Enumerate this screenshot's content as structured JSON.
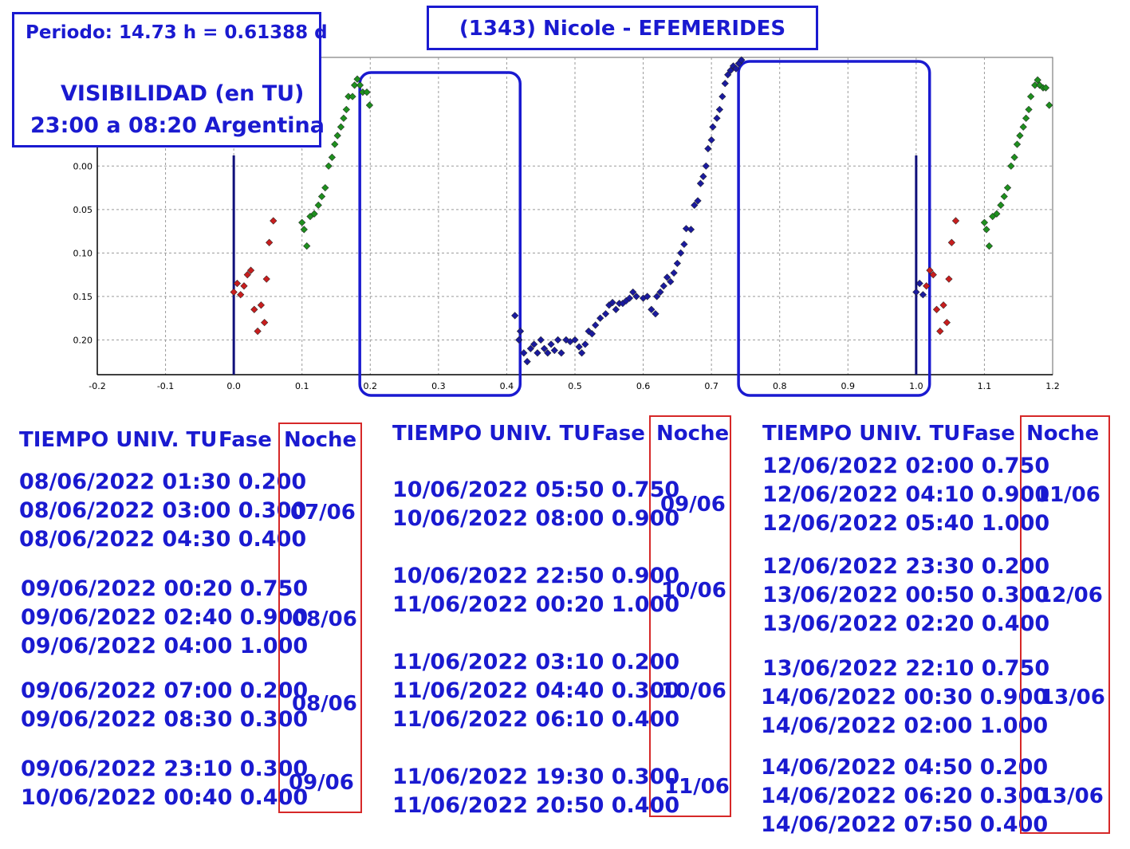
{
  "title": "(1343) Nicole - EFEMERIDES",
  "info": {
    "period": "Periodo: 14.73 h = 0.61388 d",
    "visibility_title": "VISIBILIDAD (en TU)",
    "visibility_range": "23:00 a 08:20 Argentina"
  },
  "colors": {
    "text": "#1a1ad0",
    "frame": "#1a1ad0",
    "night_box": "#d62828",
    "series_blue": "#1a1a9e",
    "series_green": "#1e8f1e",
    "series_red": "#c81e1e"
  },
  "chart_data": {
    "type": "scatter",
    "x_ticks": [
      "-0.2",
      "-0.1",
      "0.0",
      "0.1",
      "0.2",
      "0.3",
      "0.4",
      "0.5",
      "0.6",
      "0.7",
      "0.8",
      "0.9",
      "1.0",
      "1.1",
      "1.2"
    ],
    "y_ticks": [
      "0.00",
      "0.05",
      "0.10",
      "0.15",
      "0.20"
    ],
    "xlim": [
      -0.2,
      1.2
    ],
    "ylim": [
      0.24,
      -0.125
    ],
    "y_inverted": true,
    "grid": true,
    "vertical_lines": [
      0.0,
      1.0
    ],
    "visibility_windows": [
      [
        0.18,
        0.415
      ],
      [
        0.735,
        1.015
      ]
    ],
    "series": [
      {
        "color": "red",
        "points": [
          [
            0.0,
            0.145
          ],
          [
            0.005,
            0.135
          ],
          [
            0.01,
            0.148
          ],
          [
            0.015,
            0.138
          ],
          [
            0.02,
            0.125
          ],
          [
            0.025,
            0.12
          ],
          [
            0.03,
            0.165
          ],
          [
            0.035,
            0.19
          ],
          [
            0.04,
            0.16
          ],
          [
            0.045,
            0.18
          ],
          [
            0.048,
            0.13
          ],
          [
            0.052,
            0.088
          ],
          [
            0.058,
            0.063
          ]
        ]
      },
      {
        "color": "green",
        "points": [
          [
            0.1,
            0.065
          ],
          [
            0.103,
            0.073
          ],
          [
            0.107,
            0.092
          ],
          [
            0.112,
            0.058
          ],
          [
            0.118,
            0.055
          ],
          [
            0.124,
            0.045
          ],
          [
            0.129,
            0.035
          ],
          [
            0.134,
            0.025
          ],
          [
            0.139,
            0.0
          ],
          [
            0.144,
            -0.01
          ],
          [
            0.148,
            -0.025
          ],
          [
            0.152,
            -0.035
          ],
          [
            0.157,
            -0.045
          ],
          [
            0.161,
            -0.055
          ],
          [
            0.165,
            -0.065
          ],
          [
            0.168,
            -0.08
          ],
          [
            0.174,
            -0.08
          ],
          [
            0.177,
            -0.093
          ],
          [
            0.181,
            -0.1
          ],
          [
            0.185,
            -0.093
          ],
          [
            0.189,
            -0.085
          ],
          [
            0.195,
            -0.085
          ],
          [
            0.199,
            -0.07
          ],
          [
            1.1,
            0.065
          ],
          [
            1.103,
            0.073
          ],
          [
            1.107,
            0.092
          ],
          [
            1.112,
            0.058
          ],
          [
            1.118,
            0.055
          ],
          [
            1.124,
            0.045
          ],
          [
            1.129,
            0.035
          ],
          [
            1.134,
            0.025
          ],
          [
            1.139,
            0.0
          ],
          [
            1.144,
            -0.01
          ],
          [
            1.148,
            -0.025
          ],
          [
            1.152,
            -0.035
          ],
          [
            1.157,
            -0.045
          ],
          [
            1.161,
            -0.055
          ],
          [
            1.165,
            -0.065
          ],
          [
            1.168,
            -0.08
          ],
          [
            1.174,
            -0.093
          ],
          [
            1.178,
            -0.099
          ],
          [
            1.181,
            -0.093
          ],
          [
            1.186,
            -0.09
          ],
          [
            1.19,
            -0.09
          ],
          [
            1.195,
            -0.07
          ]
        ]
      },
      {
        "color": "blue",
        "points": [
          [
            0.412,
            0.172
          ],
          [
            0.418,
            0.2
          ],
          [
            0.42,
            0.19
          ],
          [
            0.425,
            0.215
          ],
          [
            0.43,
            0.225
          ],
          [
            0.435,
            0.21
          ],
          [
            0.44,
            0.205
          ],
          [
            0.445,
            0.215
          ],
          [
            0.45,
            0.2
          ],
          [
            0.455,
            0.21
          ],
          [
            0.46,
            0.215
          ],
          [
            0.465,
            0.205
          ],
          [
            0.47,
            0.212
          ],
          [
            0.475,
            0.2
          ],
          [
            0.48,
            0.215
          ],
          [
            0.487,
            0.2
          ],
          [
            0.493,
            0.202
          ],
          [
            0.5,
            0.2
          ],
          [
            0.506,
            0.208
          ],
          [
            0.51,
            0.215
          ],
          [
            0.515,
            0.205
          ],
          [
            0.52,
            0.19
          ],
          [
            0.525,
            0.193
          ],
          [
            0.53,
            0.183
          ],
          [
            0.537,
            0.175
          ],
          [
            0.545,
            0.17
          ],
          [
            0.55,
            0.16
          ],
          [
            0.555,
            0.157
          ],
          [
            0.56,
            0.165
          ],
          [
            0.565,
            0.158
          ],
          [
            0.57,
            0.158
          ],
          [
            0.575,
            0.155
          ],
          [
            0.58,
            0.152
          ],
          [
            0.585,
            0.145
          ],
          [
            0.59,
            0.15
          ],
          [
            0.6,
            0.152
          ],
          [
            0.606,
            0.15
          ],
          [
            0.612,
            0.165
          ],
          [
            0.618,
            0.17
          ],
          [
            0.62,
            0.15
          ],
          [
            0.625,
            0.145
          ],
          [
            0.63,
            0.138
          ],
          [
            0.635,
            0.128
          ],
          [
            0.64,
            0.133
          ],
          [
            0.645,
            0.123
          ],
          [
            0.65,
            0.112
          ],
          [
            0.655,
            0.1
          ],
          [
            0.66,
            0.09
          ],
          [
            0.663,
            0.072
          ],
          [
            0.67,
            0.073
          ],
          [
            0.675,
            0.045
          ],
          [
            0.68,
            0.04
          ],
          [
            0.684,
            0.02
          ],
          [
            0.688,
            0.012
          ],
          [
            0.692,
            0.0
          ],
          [
            0.695,
            -0.02
          ],
          [
            0.7,
            -0.03
          ],
          [
            0.702,
            -0.045
          ],
          [
            0.708,
            -0.055
          ],
          [
            0.712,
            -0.065
          ],
          [
            0.716,
            -0.08
          ],
          [
            0.72,
            -0.095
          ],
          [
            0.724,
            -0.105
          ],
          [
            0.728,
            -0.11
          ],
          [
            0.732,
            -0.115
          ],
          [
            0.736,
            -0.112
          ],
          [
            0.74,
            -0.118
          ],
          [
            0.744,
            -0.122
          ],
          [
            1.0,
            0.145
          ],
          [
            1.005,
            0.135
          ],
          [
            1.01,
            0.148
          ]
        ]
      },
      {
        "color": "red",
        "points": [
          [
            1.015,
            0.138
          ],
          [
            1.02,
            0.12
          ],
          [
            1.025,
            0.125
          ],
          [
            1.03,
            0.165
          ],
          [
            1.035,
            0.19
          ],
          [
            1.04,
            0.16
          ],
          [
            1.045,
            0.18
          ],
          [
            1.048,
            0.13
          ],
          [
            1.052,
            0.088
          ],
          [
            1.058,
            0.063
          ]
        ]
      }
    ]
  },
  "tables": [
    {
      "headers": {
        "time": "TIEMPO UNIV. TU",
        "phase": "Fase",
        "night": "Noche"
      },
      "groups": [
        {
          "rows": [
            "08/06/2022  01:30 0.200",
            "08/06/2022  03:00 0.300",
            "08/06/2022  04:30 0.400"
          ],
          "night": "07/06"
        },
        {
          "rows": [
            "09/06/2022  00:20 0.750",
            "09/06/2022  02:40 0.900",
            "09/06/2022  04:00 1.000"
          ],
          "night": "08/06"
        },
        {
          "rows": [
            "09/06/2022  07:00 0.200",
            "09/06/2022  08:30 0.300"
          ],
          "night": "08/06"
        },
        {
          "rows": [
            "09/06/2022  23:10 0.300",
            "10/06/2022  00:40 0.400"
          ],
          "night": "09/06"
        }
      ]
    },
    {
      "headers": {
        "time": "TIEMPO UNIV. TU",
        "phase": "Fase",
        "night": "Noche"
      },
      "groups": [
        {
          "rows": [
            "10/06/2022  05:50 0.750",
            "10/06/2022  08:00 0.900"
          ],
          "night": "09/06"
        },
        {
          "rows": [
            "10/06/2022  22:50 0.900",
            "11/06/2022  00:20 1.000"
          ],
          "night": "10/06"
        },
        {
          "rows": [
            "11/06/2022  03:10 0.200",
            "11/06/2022  04:40 0.300",
            "11/06/2022  06:10 0.400"
          ],
          "night": "10/06"
        },
        {
          "rows": [
            "11/06/2022  19:30 0.300",
            "11/06/2022  20:50 0.400"
          ],
          "night": "11/06"
        }
      ]
    },
    {
      "headers": {
        "time": "TIEMPO UNIV. TU",
        "phase": "Fase",
        "night": "Noche"
      },
      "groups": [
        {
          "rows": [
            "12/06/2022  02:00 0.750",
            "12/06/2022  04:10 0.900",
            "12/06/2022  05:40 1.000"
          ],
          "night": "11/06"
        },
        {
          "rows": [
            "12/06/2022  23:30 0.200",
            "13/06/2022  00:50 0.300",
            "13/06/2022  02:20 0.400"
          ],
          "night": "12/06"
        },
        {
          "rows": [
            "13/06/2022  22:10 0.750",
            "14/06/2022  00:30 0.900",
            "14/06/2022  02:00 1.000"
          ],
          "night": "13/06"
        },
        {
          "rows": [
            "14/06/2022  04:50 0.200",
            "14/06/2022  06:20 0.300",
            "14/06/2022  07:50 0.400"
          ],
          "night": "13/06"
        }
      ]
    }
  ]
}
